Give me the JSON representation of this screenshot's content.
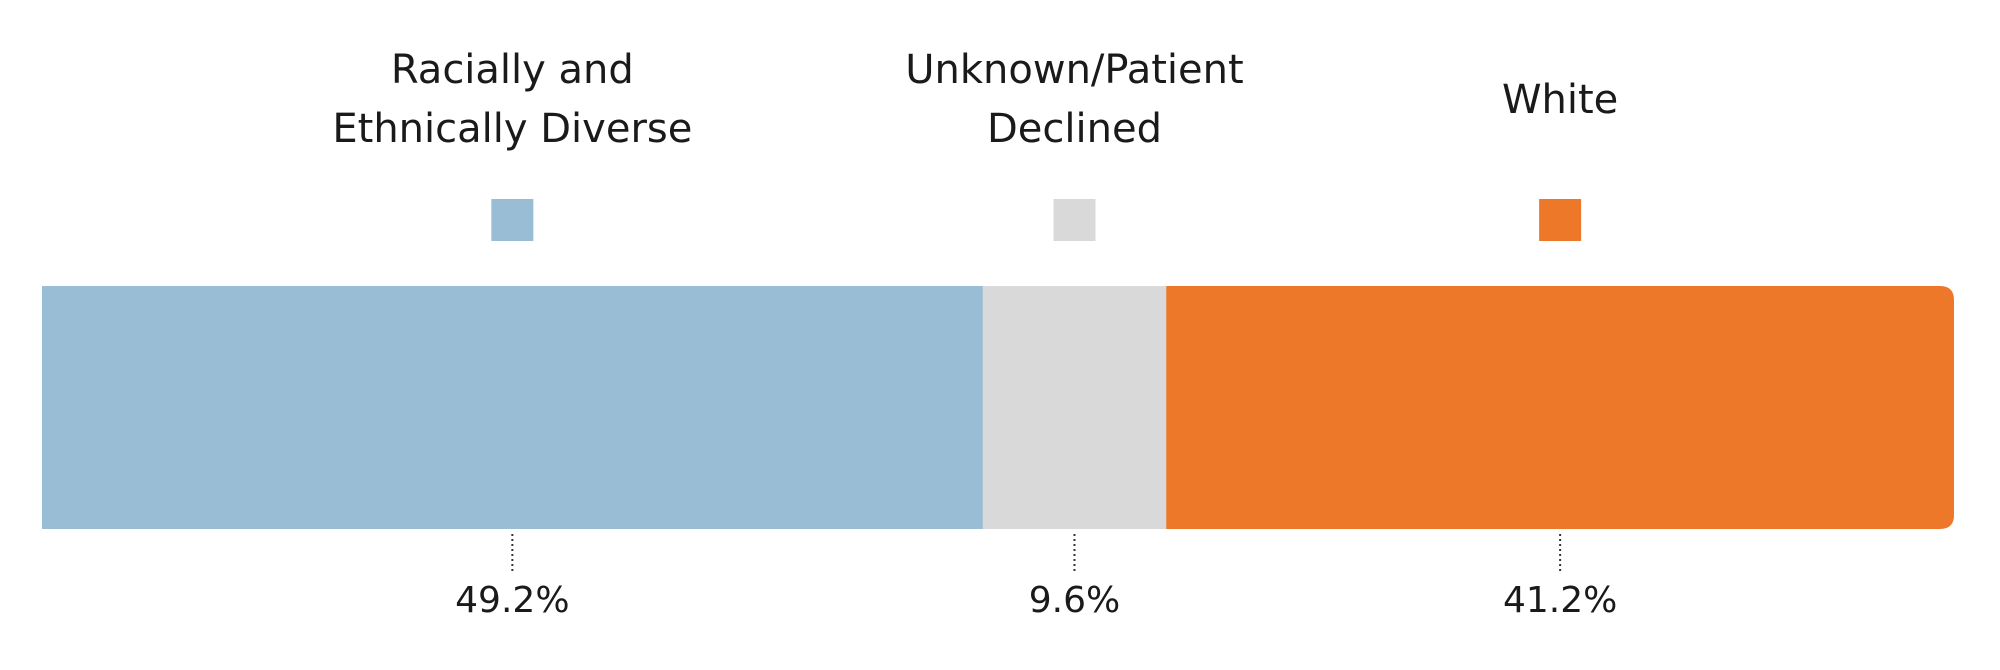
{
  "chart_data": {
    "type": "bar",
    "orientation": "horizontal-stacked",
    "categories": [
      "Racially and Ethnically Diverse",
      "Unknown/Patient Declined",
      "White"
    ],
    "series": [
      {
        "values": [
          49.2,
          9.6,
          41.2
        ],
        "colors": [
          "#98bdd4",
          "#d9d9d9",
          "#ee7829"
        ]
      }
    ],
    "legend": [
      {
        "line1": "Racially and",
        "line2": "Ethnically Diverse",
        "color": "#98bdd4"
      },
      {
        "line1": "Unknown/Patient",
        "line2": "Declined",
        "color": "#d9d9d9"
      },
      {
        "line1": "White",
        "line2": "",
        "color": "#ee7829"
      }
    ],
    "value_labels": [
      "49.2%",
      "9.6%",
      "41.2%"
    ],
    "unit": "%",
    "xlim": [
      0,
      100
    ],
    "legend_placement": "top",
    "grid": false,
    "title": "",
    "xlabel": "",
    "ylabel": ""
  }
}
